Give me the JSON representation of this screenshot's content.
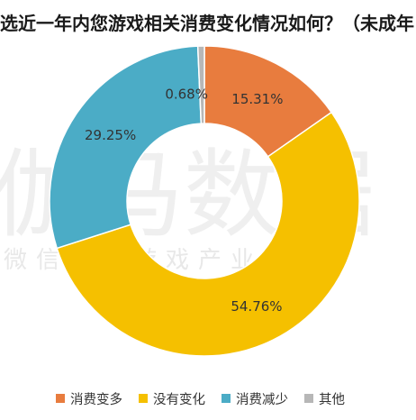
{
  "title": "选近一年内您游戏相关消费变化情况如何？（未成年",
  "watermark": {
    "main": "伽马数据",
    "sub": "微信号：游戏产业报告"
  },
  "chart_data": {
    "type": "pie",
    "donut": true,
    "title": "选近一年内您游戏相关消费变化情况如何？（未成年",
    "legend_position": "bottom",
    "slices": [
      {
        "name": "消费变多",
        "value": 15.31,
        "label": "15.31%",
        "color": "#E87C3E"
      },
      {
        "name": "没有变化",
        "value": 54.76,
        "label": "54.76%",
        "color": "#F5C000"
      },
      {
        "name": "消费减少",
        "value": 29.25,
        "label": "29.25%",
        "color": "#4BACC6"
      },
      {
        "name": "其他",
        "value": 0.68,
        "label": "0.68%",
        "color": "#B7B7B7"
      }
    ]
  }
}
